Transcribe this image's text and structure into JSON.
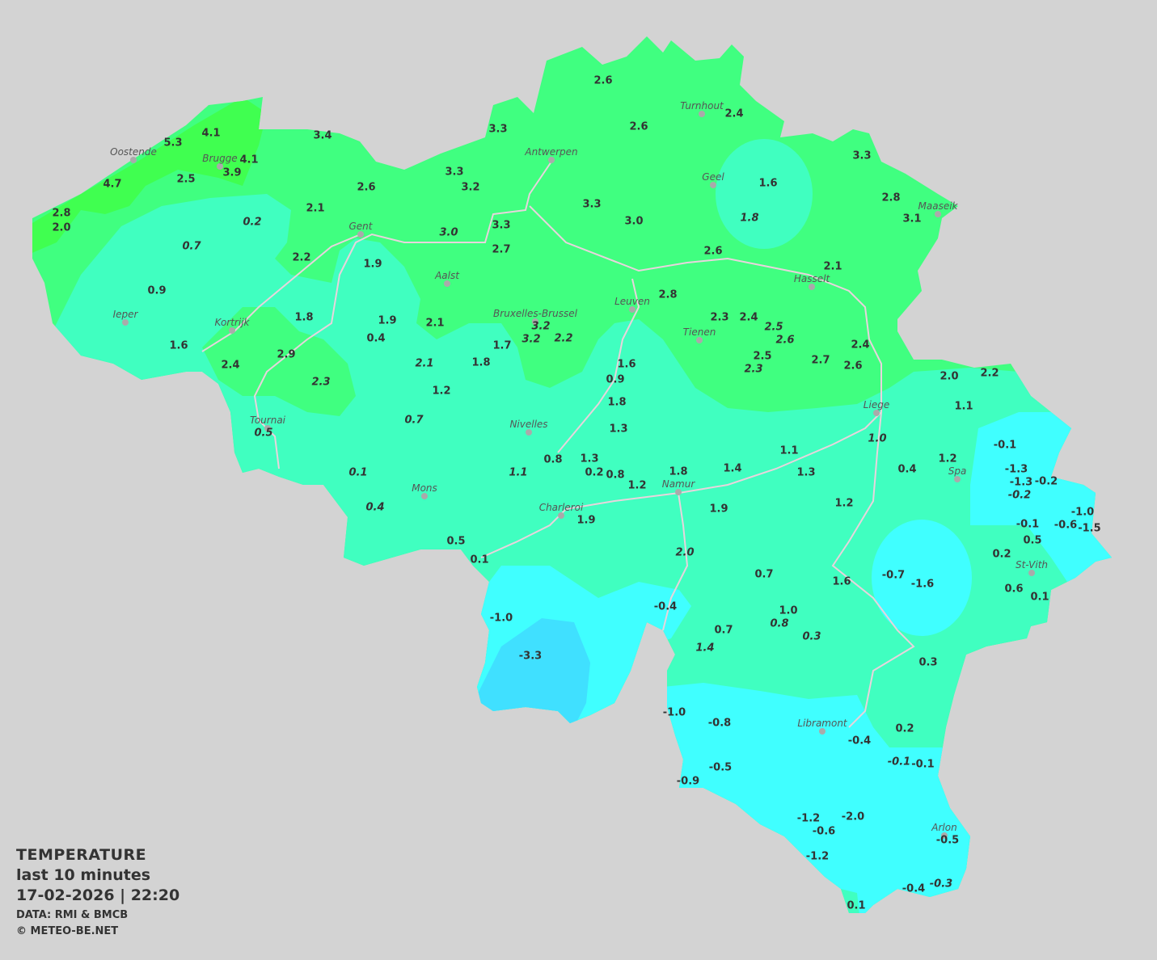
{
  "legend": {
    "title": "TEMPERATURE",
    "period": "last 10 minutes",
    "datetime": "17-02-2026  |  22:20",
    "source": "DATA: RMI & BMCB",
    "copyright": "© METEO-BE.NET"
  },
  "colors": {
    "background": "#d3d3d3",
    "band_4_to_6": "#40ff50",
    "band_2_to_4": "#40ff80",
    "band_0_to_2": "#40ffc0",
    "band_m2_to_0": "#40ffff",
    "band_m4_to_m2": "#40e0ff",
    "rivers": "#e8d4dc"
  },
  "cities": [
    "Oostende",
    "Brugge",
    "Antwerpen",
    "Turnhout",
    "Geel",
    "Maaseik",
    "Gent",
    "Aalst",
    "Hasselt",
    "Ieper",
    "Kortrijk",
    "Bruxelles-Brussel",
    "Leuven",
    "Tienen",
    "Liege",
    "Tournai",
    "Nivelles",
    "Spa",
    "Mons",
    "Charleroi",
    "Namur",
    "St-Vith",
    "Libramont",
    "Arlon"
  ],
  "stations": [
    {
      "v": "2.6"
    },
    {
      "v": "2.4"
    },
    {
      "v": "2.6"
    },
    {
      "v": "3.3"
    },
    {
      "v": "3.4"
    },
    {
      "v": "4.1"
    },
    {
      "v": "5.3"
    },
    {
      "v": "4.1"
    },
    {
      "v": "3.9"
    },
    {
      "v": "4.7"
    },
    {
      "v": "2.5"
    },
    {
      "v": "3.3"
    },
    {
      "v": "3.2"
    },
    {
      "v": "2.6"
    },
    {
      "v": "1.6"
    },
    {
      "v": "3.3"
    },
    {
      "v": "2.8"
    },
    {
      "v": "3.1"
    },
    {
      "v": "1.8",
      "italic": true
    },
    {
      "v": "3.3"
    },
    {
      "v": "3.0"
    },
    {
      "v": "2.1"
    },
    {
      "v": "2.8"
    },
    {
      "v": "2.0"
    },
    {
      "v": "0.2",
      "italic": true
    },
    {
      "v": "0.7",
      "italic": true
    },
    {
      "v": "3.0",
      "italic": true
    },
    {
      "v": "3.3"
    },
    {
      "v": "2.7"
    },
    {
      "v": "2.2"
    },
    {
      "v": "1.9"
    },
    {
      "v": "2.6"
    },
    {
      "v": "2.1"
    },
    {
      "v": "0.9"
    },
    {
      "v": "2.8"
    },
    {
      "v": "1.8"
    },
    {
      "v": "1.9"
    },
    {
      "v": "2.1"
    },
    {
      "v": "3.2",
      "italic": true
    },
    {
      "v": "3.2",
      "italic": true
    },
    {
      "v": "2.2",
      "italic": true
    },
    {
      "v": "2.3"
    },
    {
      "v": "2.4"
    },
    {
      "v": "2.5",
      "italic": true
    },
    {
      "v": "2.6",
      "italic": true
    },
    {
      "v": "0.4"
    },
    {
      "v": "1.6"
    },
    {
      "v": "1.7"
    },
    {
      "v": "2.9"
    },
    {
      "v": "2.4"
    },
    {
      "v": "2.1",
      "italic": true
    },
    {
      "v": "1.8"
    },
    {
      "v": "1.6"
    },
    {
      "v": "2.5"
    },
    {
      "v": "2.3",
      "italic": true
    },
    {
      "v": "2.7"
    },
    {
      "v": "2.6"
    },
    {
      "v": "2.4"
    },
    {
      "v": "0.9"
    },
    {
      "v": "2.3",
      "italic": true
    },
    {
      "v": "2.0"
    },
    {
      "v": "2.2"
    },
    {
      "v": "1.2"
    },
    {
      "v": "1.8"
    },
    {
      "v": "1.1"
    },
    {
      "v": "0.7",
      "italic": true
    },
    {
      "v": "0.5",
      "italic": true
    },
    {
      "v": "1.3"
    },
    {
      "v": "1.0",
      "italic": true
    },
    {
      "v": "-0.1"
    },
    {
      "v": "1.1"
    },
    {
      "v": "0.8"
    },
    {
      "v": "1.3"
    },
    {
      "v": "0.2"
    },
    {
      "v": "0.8"
    },
    {
      "v": "1.2"
    },
    {
      "v": "1.8"
    },
    {
      "v": "1.4"
    },
    {
      "v": "1.3"
    },
    {
      "v": "0.1",
      "italic": true
    },
    {
      "v": "1.1",
      "italic": true
    },
    {
      "v": "0.4"
    },
    {
      "v": "1.2"
    },
    {
      "v": "-1.3"
    },
    {
      "v": "-1.3"
    },
    {
      "v": "-0.2"
    },
    {
      "v": "-0.2",
      "italic": true
    },
    {
      "v": "0.4",
      "italic": true
    },
    {
      "v": "1.9"
    },
    {
      "v": "1.2"
    },
    {
      "v": "1.9"
    },
    {
      "v": "-0.1"
    },
    {
      "v": "-0.6"
    },
    {
      "v": "-1.0"
    },
    {
      "v": "-1.5"
    },
    {
      "v": "0.5"
    },
    {
      "v": "0.5"
    },
    {
      "v": "0.1"
    },
    {
      "v": "2.0",
      "italic": true
    },
    {
      "v": "0.2"
    },
    {
      "v": "0.7"
    },
    {
      "v": "-0.7"
    },
    {
      "v": "-1.6"
    },
    {
      "v": "1.6"
    },
    {
      "v": "0.6"
    },
    {
      "v": "0.1"
    },
    {
      "v": "-0.4"
    },
    {
      "v": "-1.0"
    },
    {
      "v": "1.0"
    },
    {
      "v": "0.8",
      "italic": true
    },
    {
      "v": "0.7"
    },
    {
      "v": "0.3",
      "italic": true
    },
    {
      "v": "1.4",
      "italic": true
    },
    {
      "v": "-3.3"
    },
    {
      "v": "0.3"
    },
    {
      "v": "-1.0"
    },
    {
      "v": "-0.8"
    },
    {
      "v": "0.2"
    },
    {
      "v": "-0.4"
    },
    {
      "v": "-0.1",
      "italic": true
    },
    {
      "v": "-0.1"
    },
    {
      "v": "-0.5"
    },
    {
      "v": "-0.9"
    },
    {
      "v": "-1.2"
    },
    {
      "v": "-0.6"
    },
    {
      "v": "-2.0"
    },
    {
      "v": "-0.5"
    },
    {
      "v": "-1.2"
    },
    {
      "v": "-0.4"
    },
    {
      "v": "-0.3",
      "italic": true
    },
    {
      "v": "0.1"
    }
  ]
}
